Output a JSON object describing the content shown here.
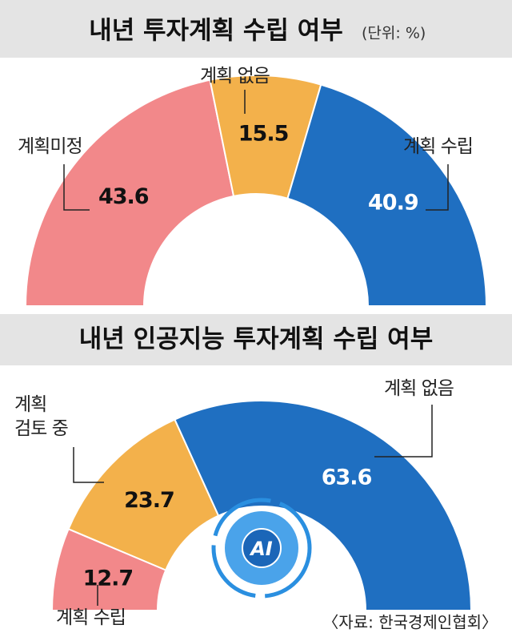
{
  "chart_data": [
    {
      "type": "half-donut",
      "title": "내년 투자계획 수립 여부",
      "unit": "(단위: %)",
      "categories": [
        "계획미정",
        "계획 없음",
        "계획 수립"
      ],
      "values": [
        43.6,
        15.5,
        40.9
      ],
      "colors": [
        "#f2888a",
        "#f3b14b",
        "#1f6fc1"
      ]
    },
    {
      "type": "half-donut",
      "title": "내년 인공지능 투자계획 수립 여부",
      "categories": [
        "계획 수립",
        "계획\n검토 중",
        "계획 없음"
      ],
      "values": [
        12.7,
        23.7,
        63.6
      ],
      "colors": [
        "#f2888a",
        "#f3b14b",
        "#1f6fc1"
      ],
      "annotation": "AI",
      "source": "〈자료: 한국경제인협회〉"
    }
  ]
}
